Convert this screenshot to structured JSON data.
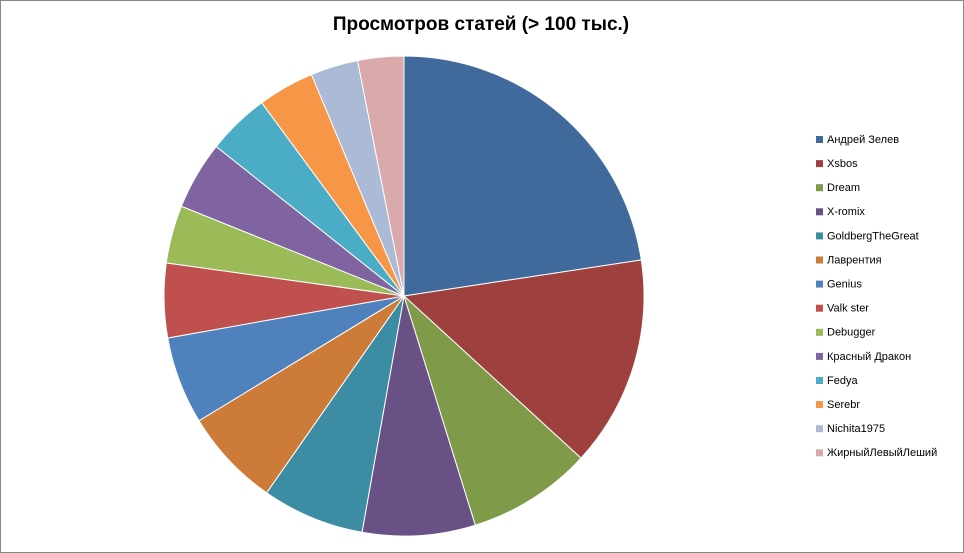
{
  "chart_data": {
    "type": "pie",
    "title": "Просмотров статей (> 100 тыс.)",
    "categories": [
      "Андрей Зелев",
      "Xsbos",
      "Dream",
      "X-romix",
      "GoldbergTheGreat",
      "Лаврентия",
      "Genius",
      "Valk ster",
      "Debugger",
      "Красный Дракон",
      "Fedya",
      "Serebr",
      "Nichita1975",
      "ЖирныйЛевыйЛеший"
    ],
    "values": [
      22.6,
      14.2,
      8.4,
      7.6,
      6.9,
      6.6,
      5.9,
      5.0,
      3.9,
      4.6,
      4.2,
      3.8,
      3.2,
      3.1
    ],
    "colors": [
      "#416a9c",
      "#9e413e",
      "#7f9a48",
      "#695185",
      "#3c8da3",
      "#cc7b38",
      "#4f81bd",
      "#c0504d",
      "#9bbb59",
      "#8064a2",
      "#4bacc6",
      "#f79646",
      "#aabad7",
      "#d9aaa9"
    ],
    "legend": "right"
  }
}
